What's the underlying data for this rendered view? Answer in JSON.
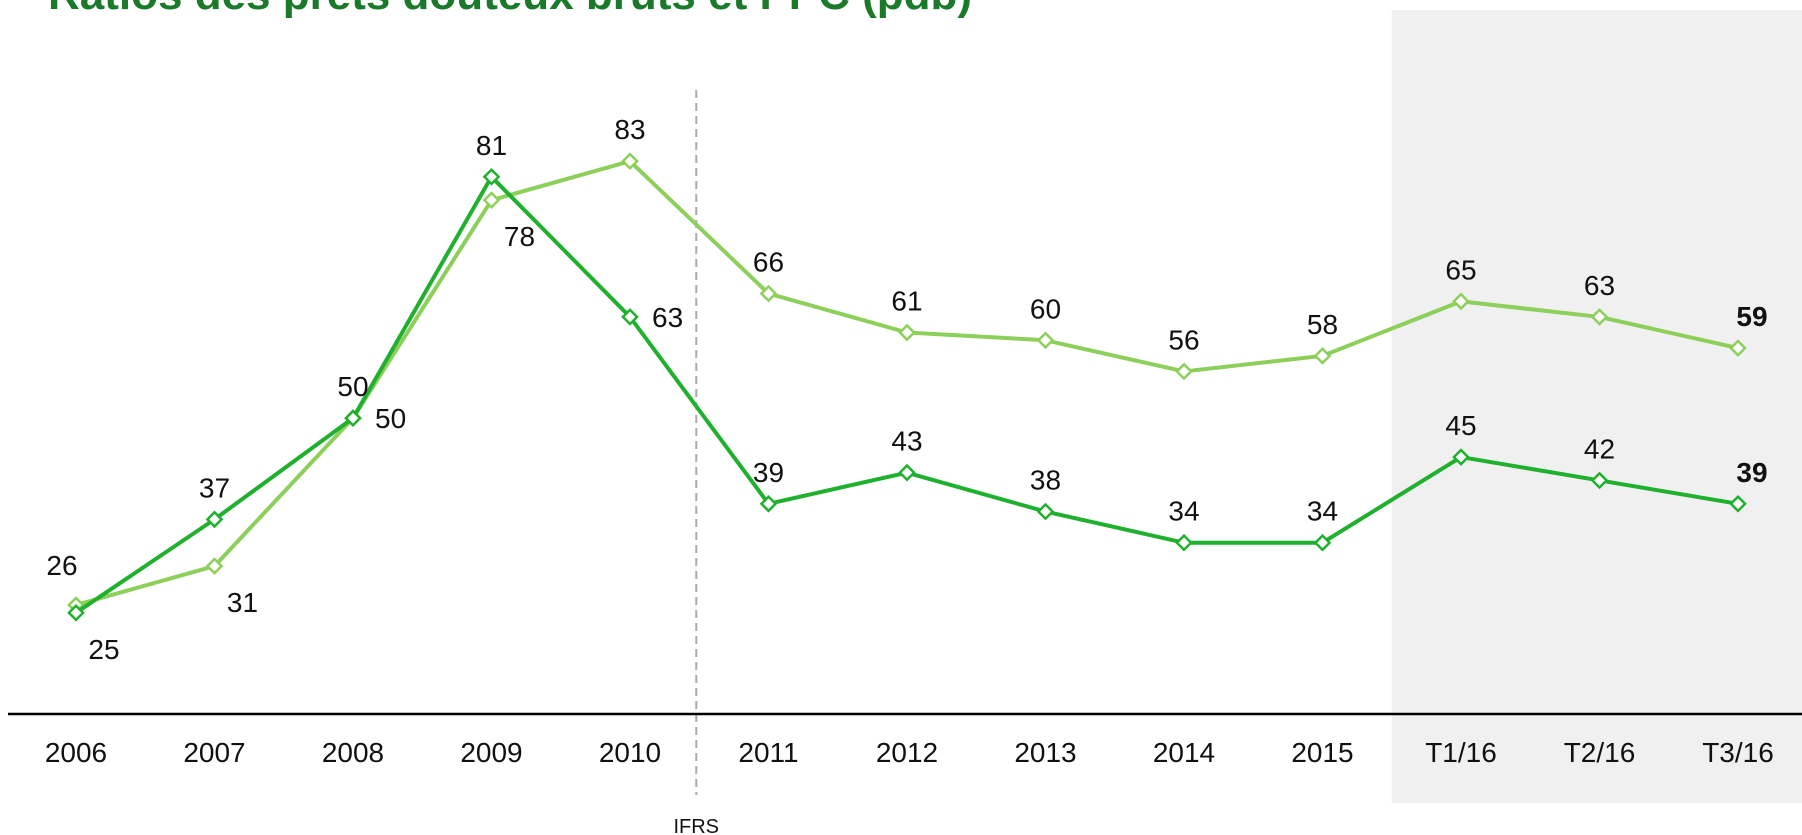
{
  "chart_data": {
    "type": "line",
    "title": "Ratios des prêts douteux bruts et PPC (pdb)",
    "categories": [
      "2006",
      "2007",
      "2008",
      "2009",
      "2010",
      "2011",
      "2012",
      "2013",
      "2014",
      "2015",
      "T1/16",
      "T2/16",
      "T3/16"
    ],
    "series": [
      {
        "values": [
          26,
          31,
          50,
          78,
          83,
          66,
          61,
          60,
          56,
          58,
          65,
          63,
          59
        ],
        "color": "#8ccf5a",
        "label_position": "mixed"
      },
      {
        "values": [
          25,
          37,
          50,
          81,
          63,
          39,
          43,
          38,
          34,
          34,
          45,
          42,
          39
        ],
        "color": "#1fb02e"
      }
    ],
    "label_overrides": {
      "series0": {
        "1": "below",
        "3": "below",
        "2": "right"
      },
      "series1": {
        "0": "below",
        "4": "right"
      }
    },
    "ylim": [
      12,
      96
    ],
    "annotation": "IFRS",
    "annotation_after_index": 4,
    "shaded_from_index": 10,
    "bold_last_labels": true,
    "grid": false,
    "colors": {
      "title": "#1b7a2a",
      "shade": "#f0f0f0",
      "axis": "#000000",
      "divider": "#aaaaaa"
    }
  }
}
